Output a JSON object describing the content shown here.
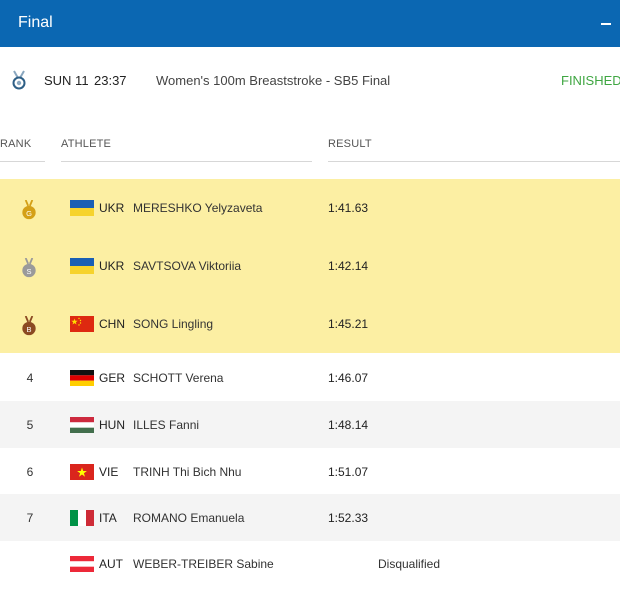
{
  "header": {
    "title": "Final",
    "collapse_label": "–"
  },
  "event": {
    "day": "SUN 11",
    "time": "23:37",
    "name": "Women's 100m Breaststroke - SB5 Final",
    "status": "FINISHED",
    "icon": "medal-icon"
  },
  "columns": {
    "rank": "RANK",
    "athlete": "ATHLETE",
    "result": "RESULT"
  },
  "colors": {
    "header": "#0b67b2",
    "medal_row": "#fcefa3",
    "status": "#3fa642",
    "gold": "#d4a017",
    "silver": "#9a9a9a",
    "bronze": "#8b4a22"
  },
  "rows": [
    {
      "rank": "",
      "medal_letter": "G",
      "medal": "gold",
      "noc": "UKR",
      "flag": "ukraine-flag-icon",
      "name": "MERESHKO Yelyzaveta",
      "result": "1:41.63"
    },
    {
      "rank": "",
      "medal_letter": "S",
      "medal": "silver",
      "noc": "UKR",
      "flag": "ukraine-flag-icon",
      "name": "SAVTSOVA Viktoriia",
      "result": "1:42.14"
    },
    {
      "rank": "",
      "medal_letter": "B",
      "medal": "bronze",
      "noc": "CHN",
      "flag": "china-flag-icon",
      "name": "SONG Lingling",
      "result": "1:45.21"
    },
    {
      "rank": "4",
      "noc": "GER",
      "flag": "germany-flag-icon",
      "name": "SCHOTT Verena",
      "result": "1:46.07"
    },
    {
      "rank": "5",
      "noc": "HUN",
      "flag": "hungary-flag-icon",
      "name": "ILLES Fanni",
      "result": "1:48.14"
    },
    {
      "rank": "6",
      "noc": "VIE",
      "flag": "vietnam-flag-icon",
      "name": "TRINH Thi Bich Nhu",
      "result": "1:51.07"
    },
    {
      "rank": "7",
      "noc": "ITA",
      "flag": "italy-flag-icon",
      "name": "ROMANO Emanuela",
      "result": "1:52.33"
    },
    {
      "rank": "",
      "noc": "AUT",
      "flag": "austria-flag-icon",
      "name": "WEBER-TREIBER Sabine",
      "result": "Disqualified"
    }
  ]
}
